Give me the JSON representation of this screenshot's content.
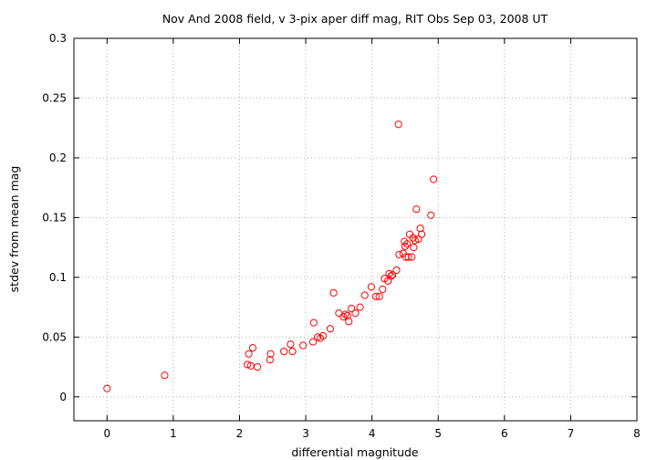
{
  "chart_data": {
    "type": "scatter",
    "title": "Nov And 2008 field, v 3-pix aper diff mag, RIT Obs Sep 03, 2008 UT",
    "xlabel": "differential magnitude",
    "ylabel": "stdev from mean mag",
    "xlim": [
      -0.5,
      8
    ],
    "ylim": [
      -0.02,
      0.3
    ],
    "xticks": [
      "0",
      "1",
      "2",
      "3",
      "4",
      "5",
      "6",
      "7",
      "8"
    ],
    "yticks": [
      "0",
      "0.05",
      "0.1",
      "0.15",
      "0.2",
      "0.25",
      "0.3"
    ],
    "grid": true,
    "legend": "none",
    "marker_color": "#ff0000",
    "points": [
      [
        0.0,
        0.007
      ],
      [
        0.87,
        0.018
      ],
      [
        2.12,
        0.027
      ],
      [
        2.14,
        0.036
      ],
      [
        2.17,
        0.026
      ],
      [
        2.2,
        0.041
      ],
      [
        2.27,
        0.025
      ],
      [
        2.46,
        0.031
      ],
      [
        2.47,
        0.036
      ],
      [
        2.67,
        0.038
      ],
      [
        2.77,
        0.044
      ],
      [
        2.8,
        0.038
      ],
      [
        2.96,
        0.043
      ],
      [
        3.11,
        0.046
      ],
      [
        3.12,
        0.062
      ],
      [
        3.18,
        0.05
      ],
      [
        3.22,
        0.049
      ],
      [
        3.26,
        0.051
      ],
      [
        3.37,
        0.057
      ],
      [
        3.42,
        0.087
      ],
      [
        3.5,
        0.07
      ],
      [
        3.57,
        0.067
      ],
      [
        3.6,
        0.069
      ],
      [
        3.63,
        0.068
      ],
      [
        3.65,
        0.063
      ],
      [
        3.69,
        0.074
      ],
      [
        3.75,
        0.07
      ],
      [
        3.82,
        0.075
      ],
      [
        3.89,
        0.085
      ],
      [
        3.99,
        0.092
      ],
      [
        4.06,
        0.084
      ],
      [
        4.11,
        0.084
      ],
      [
        4.16,
        0.09
      ],
      [
        4.19,
        0.099
      ],
      [
        4.24,
        0.097
      ],
      [
        4.26,
        0.103
      ],
      [
        4.29,
        0.101
      ],
      [
        4.31,
        0.102
      ],
      [
        4.37,
        0.106
      ],
      [
        4.4,
        0.228
      ],
      [
        4.41,
        0.119
      ],
      [
        4.47,
        0.12
      ],
      [
        4.49,
        0.13
      ],
      [
        4.5,
        0.126
      ],
      [
        4.51,
        0.117
      ],
      [
        4.53,
        0.128
      ],
      [
        4.55,
        0.117
      ],
      [
        4.57,
        0.136
      ],
      [
        4.6,
        0.117
      ],
      [
        4.62,
        0.133
      ],
      [
        4.63,
        0.125
      ],
      [
        4.65,
        0.131
      ],
      [
        4.67,
        0.157
      ],
      [
        4.7,
        0.132
      ],
      [
        4.73,
        0.141
      ],
      [
        4.75,
        0.136
      ],
      [
        4.89,
        0.152
      ],
      [
        4.93,
        0.182
      ]
    ]
  }
}
